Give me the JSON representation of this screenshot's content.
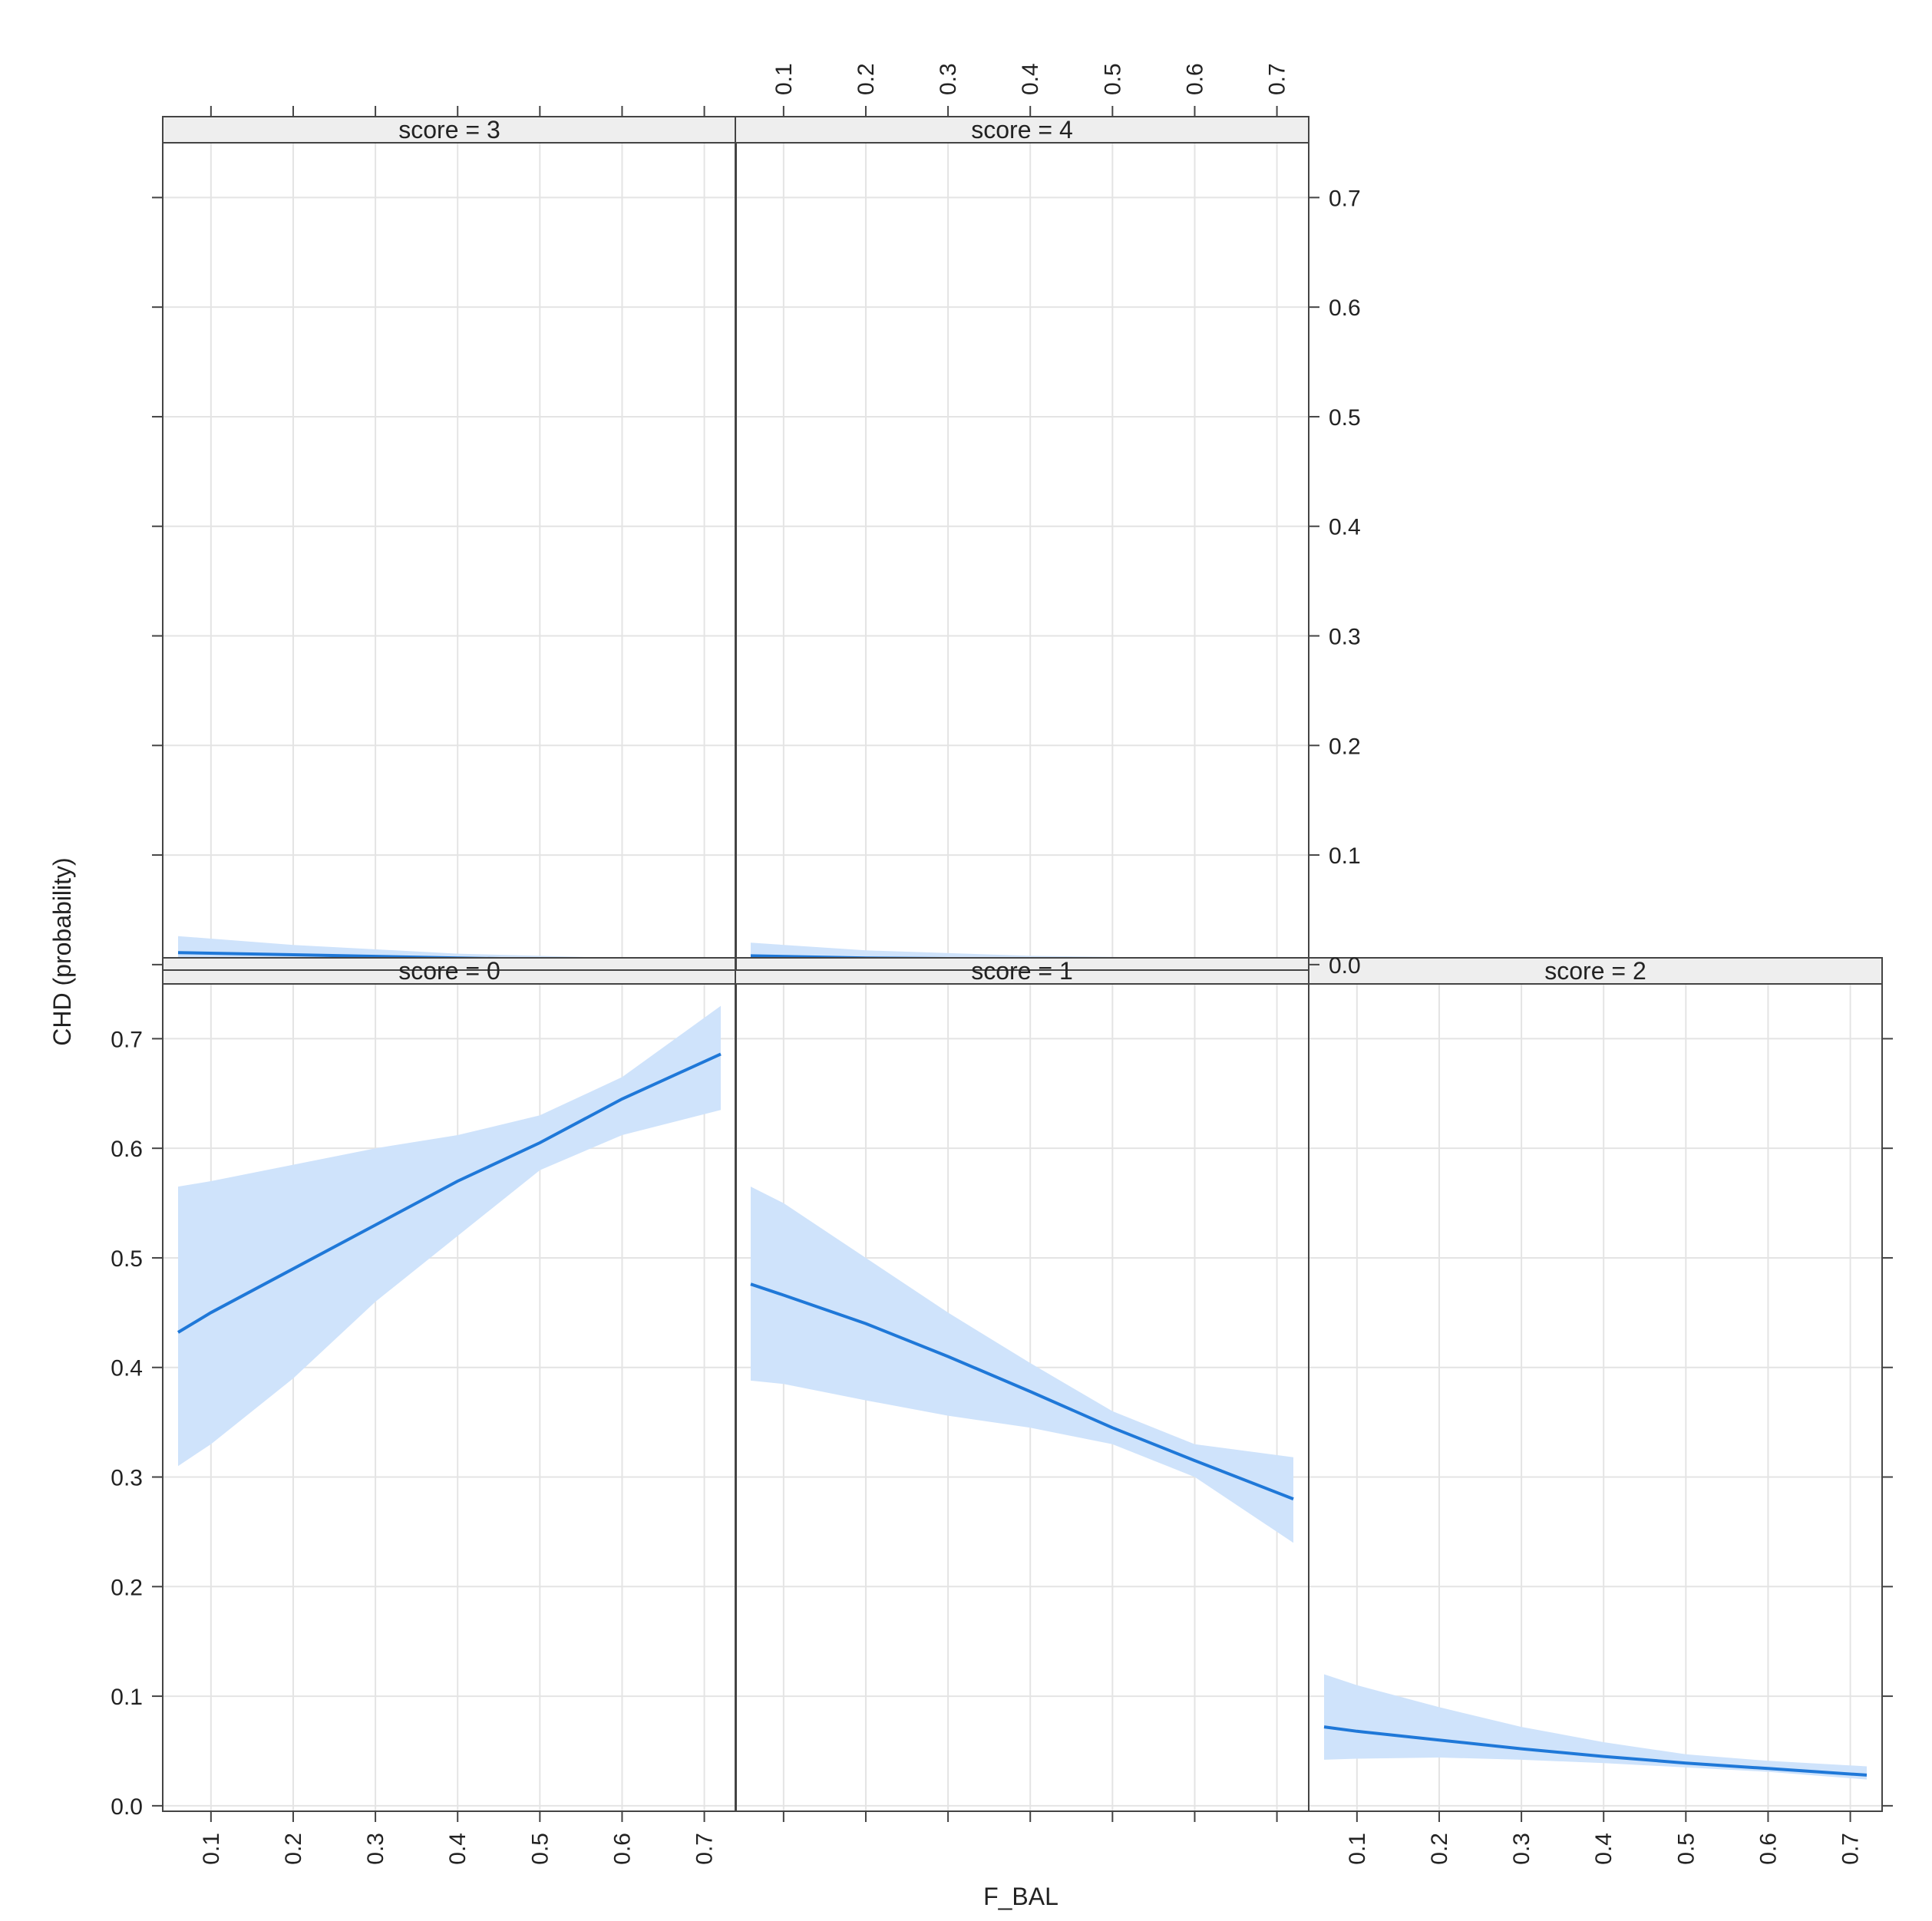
{
  "chart_data": {
    "type": "line",
    "layout": "lattice 3 columns x 2 rows, panels score=0,1,2 bottom row and score=3,4 top row, shared axes",
    "xlabel": "F_BAL",
    "ylabel": "CHD (probability)",
    "xlim": [
      0.06,
      0.72
    ],
    "ylim": [
      -0.005,
      0.75
    ],
    "x_ticks": [
      "0.1",
      "0.2",
      "0.3",
      "0.4",
      "0.5",
      "0.6",
      "0.7"
    ],
    "y_ticks": [
      "0.0",
      "0.1",
      "0.2",
      "0.3",
      "0.4",
      "0.5",
      "0.6",
      "0.7"
    ],
    "grid": true,
    "colors": {
      "line": "#1f78d8",
      "band": "#cfe3fb",
      "strip": "#eeeeee",
      "grid": "#e4e4e4",
      "frame": "#444444"
    },
    "panels": [
      {
        "strip": "score = 0",
        "x": [
          0.06,
          0.1,
          0.2,
          0.3,
          0.4,
          0.5,
          0.6,
          0.72
        ],
        "y": [
          0.432,
          0.45,
          0.49,
          0.53,
          0.57,
          0.605,
          0.645,
          0.686
        ],
        "lower": [
          0.31,
          0.33,
          0.39,
          0.46,
          0.52,
          0.58,
          0.612,
          0.635
        ],
        "upper": [
          0.565,
          0.57,
          0.585,
          0.6,
          0.612,
          0.63,
          0.665,
          0.73
        ]
      },
      {
        "strip": "score = 1",
        "x": [
          0.06,
          0.1,
          0.2,
          0.3,
          0.4,
          0.5,
          0.6,
          0.72
        ],
        "y": [
          0.476,
          0.466,
          0.44,
          0.41,
          0.378,
          0.345,
          0.315,
          0.28
        ],
        "lower": [
          0.388,
          0.385,
          0.37,
          0.356,
          0.345,
          0.33,
          0.3,
          0.24
        ],
        "upper": [
          0.565,
          0.55,
          0.5,
          0.45,
          0.404,
          0.36,
          0.33,
          0.318
        ]
      },
      {
        "strip": "score = 2",
        "x": [
          0.06,
          0.1,
          0.2,
          0.3,
          0.4,
          0.5,
          0.6,
          0.72
        ],
        "y": [
          0.072,
          0.068,
          0.06,
          0.052,
          0.045,
          0.039,
          0.034,
          0.028
        ],
        "lower": [
          0.042,
          0.043,
          0.044,
          0.042,
          0.039,
          0.035,
          0.031,
          0.024
        ],
        "upper": [
          0.12,
          0.11,
          0.09,
          0.072,
          0.058,
          0.047,
          0.041,
          0.036
        ]
      },
      {
        "strip": "score = 3",
        "x": [
          0.06,
          0.2,
          0.4,
          0.6,
          0.72
        ],
        "y": [
          0.011,
          0.009,
          0.006,
          0.004,
          0.003
        ],
        "lower": [
          0.004,
          0.005,
          0.004,
          0.003,
          0.002
        ],
        "upper": [
          0.026,
          0.018,
          0.01,
          0.006,
          0.005
        ]
      },
      {
        "strip": "score = 4",
        "x": [
          0.06,
          0.2,
          0.4,
          0.6,
          0.72
        ],
        "y": [
          0.008,
          0.006,
          0.005,
          0.004,
          0.003
        ],
        "lower": [
          0.003,
          0.003,
          0.003,
          0.002,
          0.002
        ],
        "upper": [
          0.02,
          0.013,
          0.008,
          0.006,
          0.005
        ]
      }
    ]
  }
}
